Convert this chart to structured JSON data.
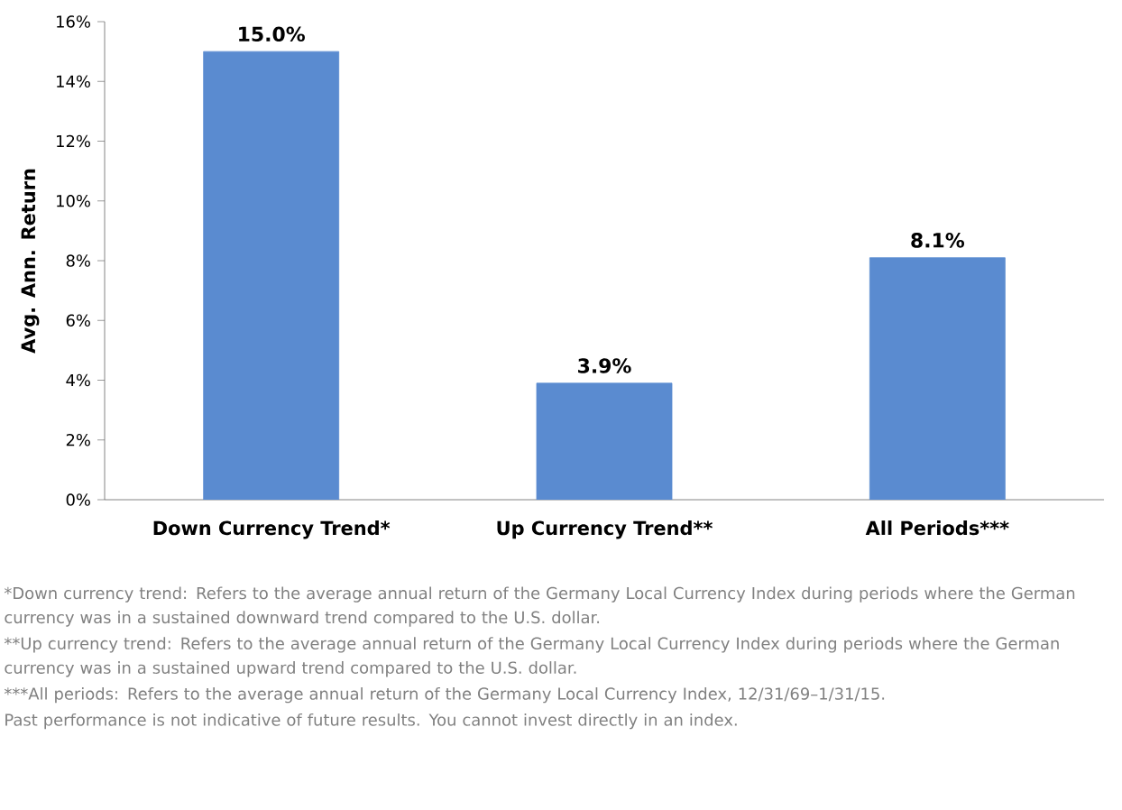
{
  "chart_data": {
    "type": "bar",
    "categories": [
      "Down Currency Trend*",
      "Up Currency Trend**",
      "All Periods***"
    ],
    "values": [
      15.0,
      3.9,
      8.1
    ],
    "value_labels": [
      "15.0%",
      "3.9%",
      "8.1%"
    ],
    "color": "#5a8bd0",
    "ylabel": "Avg. Ann. Return",
    "ylim": [
      0,
      16
    ],
    "yticks": [
      {
        "value": 0,
        "label": "0%"
      },
      {
        "value": 2,
        "label": "2%"
      },
      {
        "value": 4,
        "label": "4%"
      },
      {
        "value": 6,
        "label": "6%"
      },
      {
        "value": 8,
        "label": "8%"
      },
      {
        "value": 10,
        "label": "10%"
      },
      {
        "value": 12,
        "label": "12%"
      },
      {
        "value": 14,
        "label": "14%"
      },
      {
        "value": 16,
        "label": "16%"
      }
    ],
    "grid": false,
    "annotations": [
      "*Down currency trend: Refers to the average annual return of the Germany Local Currency Index during periods where the German currency was in a sustained downward trend compared to the U.S. dollar.",
      "**Up currency trend: Refers to the average annual return of the Germany Local Currency Index during periods where the German currency was in a sustained upward trend compared to the U.S. dollar.",
      "***All periods: Refers to the average annual return of the Germany Local Currency Index, 12/31/69–1/31/15.",
      "Past performance is not indicative of future results. You cannot invest directly in an index."
    ]
  }
}
